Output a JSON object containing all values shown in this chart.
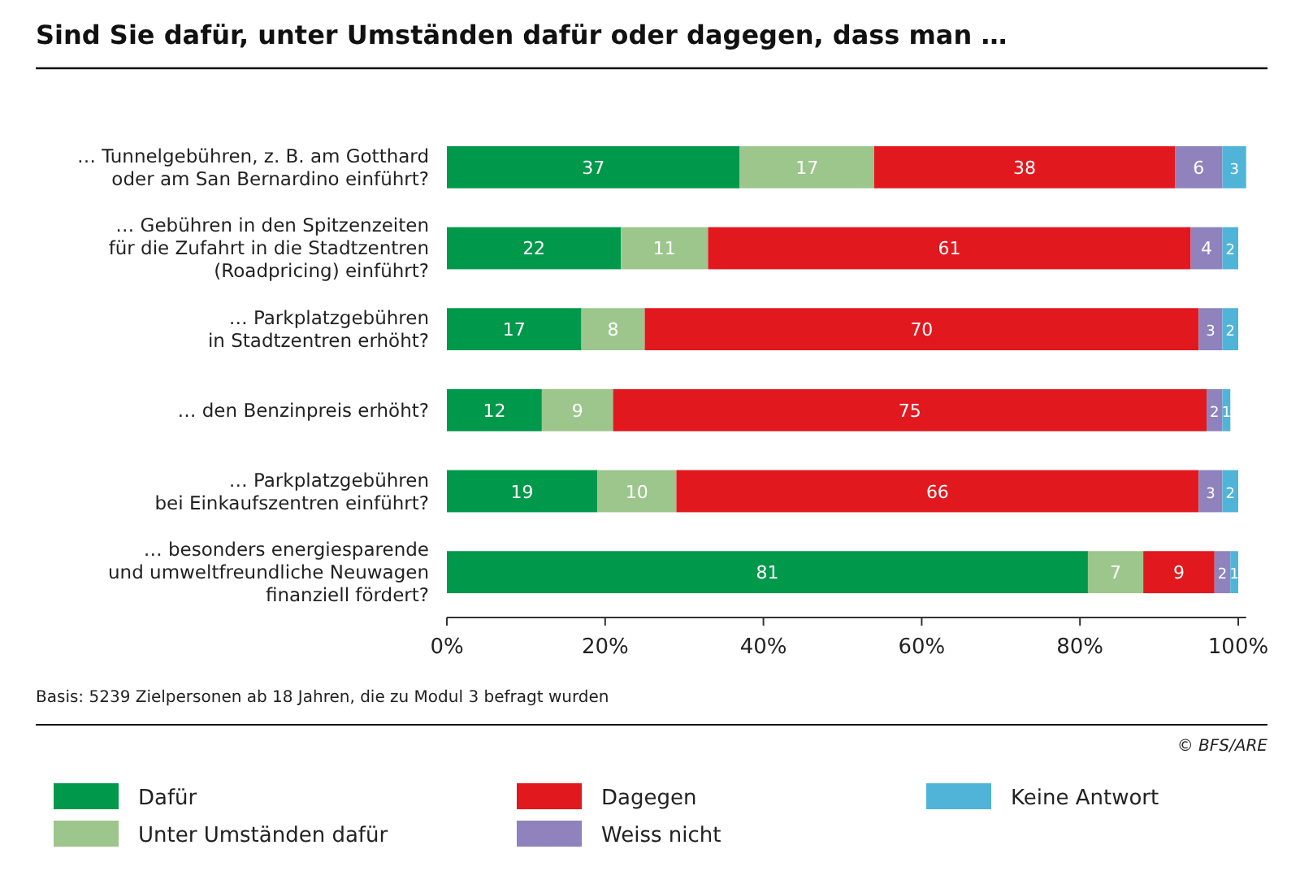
{
  "chart_data": {
    "type": "bar",
    "orientation": "horizontal",
    "stacked": true,
    "title": "Sind Sie dafür, unter Umständen dafür oder dagegen, dass man …",
    "categories": [
      "… Tunnelgebühren, z. B. am Gotthard\noder am San Bernardino einführt?",
      "… Gebühren in den Spitzenzeiten\nfür die Zufahrt in die Stadtzentren\n(Roadpricing) einführt?",
      "… Parkplatzgebühren\nin Stadtzentren erhöht?",
      "… den Benzinpreis erhöht?",
      "… Parkplatzgebühren\nbei Einkaufszentren einführt?",
      "… besonders energiesparende\nund umweltfreundliche Neuwagen\nfinanziell fördert?"
    ],
    "series": [
      {
        "name": "Dafür",
        "color": "#00984a",
        "values": [
          37,
          22,
          17,
          12,
          19,
          81
        ]
      },
      {
        "name": "Unter Umständen dafür",
        "color": "#9cc68c",
        "values": [
          17,
          11,
          8,
          9,
          10,
          7
        ]
      },
      {
        "name": "Dagegen",
        "color": "#e2181f",
        "values": [
          38,
          61,
          70,
          75,
          66,
          9
        ]
      },
      {
        "name": "Weiss nicht",
        "color": "#8f82bd",
        "values": [
          6,
          4,
          3,
          2,
          3,
          2
        ]
      },
      {
        "name": "Keine Antwort",
        "color": "#4fb4d8",
        "values": [
          3,
          2,
          2,
          1,
          2,
          1
        ]
      }
    ],
    "xlim": [
      0,
      101
    ],
    "xticks": [
      {
        "value": 0,
        "label": "0%"
      },
      {
        "value": 20,
        "label": "20%"
      },
      {
        "value": 40,
        "label": "40%"
      },
      {
        "value": 60,
        "label": "60%"
      },
      {
        "value": 80,
        "label": "80%"
      },
      {
        "value": 100,
        "label": "100%"
      }
    ],
    "data_labels": true,
    "legend": "bottom",
    "grid": false,
    "annotations": [
      "Basis: 5239 Zielpersonen ab 18 Jahren, die zu Modul 3 befragt wurden",
      "© BFS/ARE"
    ]
  }
}
